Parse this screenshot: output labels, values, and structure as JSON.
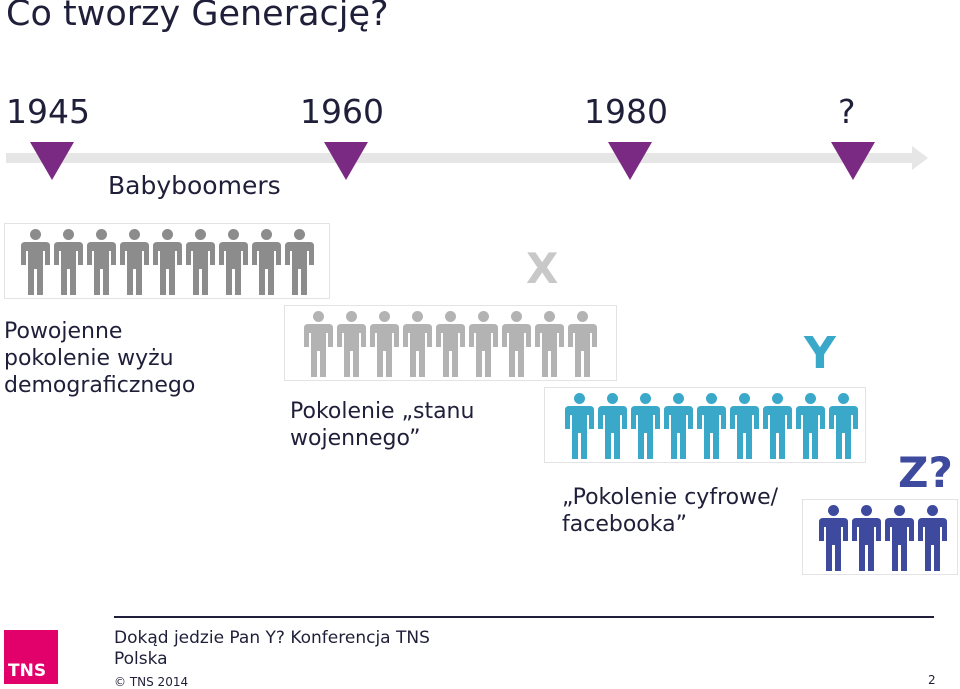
{
  "slide": {
    "title": "Co tworzy Generację?",
    "page_number": "2"
  },
  "timeline": {
    "years": [
      "1945",
      "1960",
      "1980",
      "?"
    ],
    "label": "Babyboomers",
    "marker_color": "#7a2a82",
    "bar_color": "#e6e6e6"
  },
  "groups": {
    "boomers": {
      "caption_lines": [
        "Powojenne",
        "pokolenie wyżu",
        "demograficznego"
      ],
      "count": 9,
      "color": "#8c8c8c"
    },
    "x": {
      "letter": "X",
      "caption_lines": [
        "Pokolenie „stanu",
        "wojennego”"
      ],
      "count": 9,
      "color": "#b3b3b3",
      "letter_color": "#c8c8c8"
    },
    "y": {
      "letter": "Y",
      "caption_lines": [
        "„Pokolenie cyfrowe/",
        "facebooka”"
      ],
      "count": 9,
      "color": "#3aa9c9",
      "letter_color": "#3aa9c9"
    },
    "z": {
      "letter": "Z?",
      "count": 4,
      "color": "#3e4a9e",
      "letter_color": "#3e4a9e"
    }
  },
  "footer": {
    "line1": "Dokąd jedzie Pan Y? Konferencja TNS",
    "line2": "Polska",
    "copyright": "© TNS 2014",
    "logo_text": "TNS",
    "logo_color": "#e2006a"
  }
}
